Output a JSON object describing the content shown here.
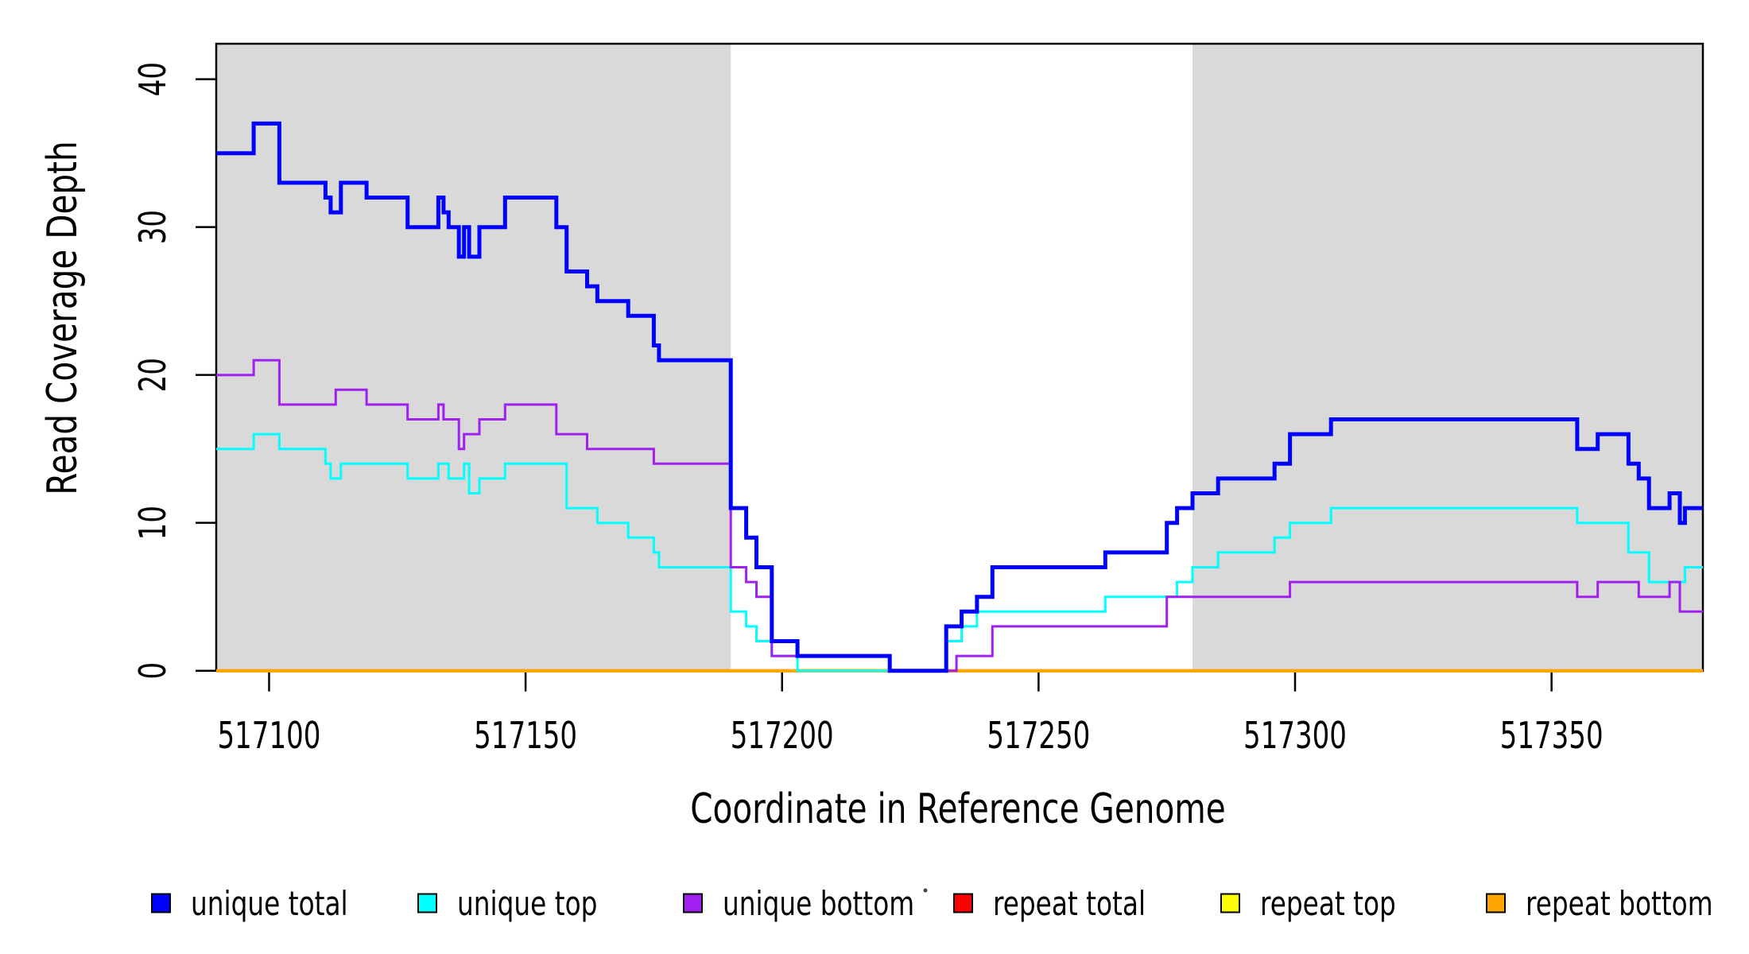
{
  "chart_data": {
    "type": "line",
    "subtype": "step",
    "title": "",
    "xlabel": "Coordinate in Reference Genome",
    "ylabel": "Read Coverage Depth",
    "xlim": [
      517089.7,
      517379.5
    ],
    "ylim": [
      0,
      42.4
    ],
    "x_ticks": [
      517100,
      517150,
      517200,
      517250,
      517300,
      517350
    ],
    "x_tick_labels": [
      "517100",
      "517150",
      "517200",
      "517250",
      "517300",
      "517350"
    ],
    "y_ticks": [
      0,
      10,
      20,
      30,
      40
    ],
    "y_tick_labels": [
      "0",
      "10",
      "20",
      "30",
      "40"
    ],
    "grid": false,
    "legend_position": "bottom",
    "plot_background": "#FFFFFF",
    "shaded_region_color": "#D9D9D9",
    "shaded_regions": [
      {
        "name": "left-gray-region",
        "start": 517089.7,
        "end": 517190
      },
      {
        "name": "right-gray-region",
        "start": 517280,
        "end": 517379.5
      }
    ],
    "series": [
      {
        "name": "unique total",
        "color": "#0000FF",
        "line_width": 5,
        "steps": [
          [
            517089.7,
            35
          ],
          [
            517097,
            37
          ],
          [
            517102,
            33
          ],
          [
            517111,
            32
          ],
          [
            517112,
            31
          ],
          [
            517114,
            33
          ],
          [
            517119,
            32
          ],
          [
            517127,
            30
          ],
          [
            517133,
            32
          ],
          [
            517134,
            31
          ],
          [
            517135,
            30
          ],
          [
            517137,
            28
          ],
          [
            517138,
            30
          ],
          [
            517139,
            28
          ],
          [
            517141,
            30
          ],
          [
            517146,
            32
          ],
          [
            517156,
            30
          ],
          [
            517158,
            27
          ],
          [
            517162,
            26
          ],
          [
            517164,
            25
          ],
          [
            517170,
            24
          ],
          [
            517175,
            22
          ],
          [
            517176,
            21
          ],
          [
            517190,
            11
          ],
          [
            517193,
            9
          ],
          [
            517195,
            7
          ],
          [
            517198,
            2
          ],
          [
            517203,
            1
          ],
          [
            517221,
            0
          ],
          [
            517232,
            3
          ],
          [
            517235,
            4
          ],
          [
            517238,
            5
          ],
          [
            517241,
            7
          ],
          [
            517263,
            8
          ],
          [
            517275,
            10
          ],
          [
            517277,
            11
          ],
          [
            517280,
            12
          ],
          [
            517285,
            13
          ],
          [
            517296,
            14
          ],
          [
            517299,
            16
          ],
          [
            517307,
            17
          ],
          [
            517355,
            15
          ],
          [
            517359,
            16
          ],
          [
            517365,
            14
          ],
          [
            517367,
            13
          ],
          [
            517369,
            11
          ],
          [
            517373,
            12
          ],
          [
            517375,
            10
          ],
          [
            517376,
            11
          ]
        ]
      },
      {
        "name": "unique top",
        "color": "#00FFFF",
        "line_width": 3,
        "steps": [
          [
            517089.7,
            15
          ],
          [
            517097,
            16
          ],
          [
            517102,
            15
          ],
          [
            517111,
            14
          ],
          [
            517112,
            13
          ],
          [
            517114,
            14
          ],
          [
            517127,
            13
          ],
          [
            517133,
            14
          ],
          [
            517135,
            13
          ],
          [
            517138,
            14
          ],
          [
            517139,
            12
          ],
          [
            517141,
            13
          ],
          [
            517146,
            14
          ],
          [
            517158,
            11
          ],
          [
            517164,
            10
          ],
          [
            517170,
            9
          ],
          [
            517175,
            8
          ],
          [
            517176,
            7
          ],
          [
            517190,
            4
          ],
          [
            517193,
            3
          ],
          [
            517195,
            2
          ],
          [
            517198,
            1
          ],
          [
            517203,
            0
          ],
          [
            517232,
            2
          ],
          [
            517235,
            3
          ],
          [
            517238,
            4
          ],
          [
            517263,
            5
          ],
          [
            517277,
            6
          ],
          [
            517280,
            7
          ],
          [
            517285,
            8
          ],
          [
            517296,
            9
          ],
          [
            517299,
            10
          ],
          [
            517307,
            11
          ],
          [
            517355,
            10
          ],
          [
            517365,
            8
          ],
          [
            517369,
            6
          ],
          [
            517376,
            7
          ]
        ]
      },
      {
        "name": "unique bottom",
        "color": "#A020F0",
        "line_width": 3,
        "steps": [
          [
            517089.7,
            20
          ],
          [
            517097,
            21
          ],
          [
            517102,
            18
          ],
          [
            517113,
            19
          ],
          [
            517119,
            18
          ],
          [
            517127,
            17
          ],
          [
            517133,
            18
          ],
          [
            517134,
            17
          ],
          [
            517137,
            15
          ],
          [
            517138,
            16
          ],
          [
            517141,
            17
          ],
          [
            517146,
            18
          ],
          [
            517156,
            16
          ],
          [
            517162,
            15
          ],
          [
            517175,
            14
          ],
          [
            517190,
            7
          ],
          [
            517193,
            6
          ],
          [
            517195,
            5
          ],
          [
            517198,
            1
          ],
          [
            517221,
            0
          ],
          [
            517234,
            1
          ],
          [
            517241,
            3
          ],
          [
            517275,
            5
          ],
          [
            517299,
            6
          ],
          [
            517355,
            5
          ],
          [
            517359,
            6
          ],
          [
            517367,
            5
          ],
          [
            517373,
            6
          ],
          [
            517375,
            4
          ]
        ]
      },
      {
        "name": "repeat total",
        "color": "#FF0000",
        "line_width": 4,
        "steps": [
          [
            517089.7,
            0
          ]
        ]
      },
      {
        "name": "repeat top",
        "color": "#FFFF00",
        "line_width": 4,
        "steps": [
          [
            517089.7,
            0
          ]
        ]
      },
      {
        "name": "repeat bottom",
        "color": "#FFA500",
        "line_width": 4,
        "steps": [
          [
            517089.7,
            0
          ]
        ]
      }
    ]
  }
}
